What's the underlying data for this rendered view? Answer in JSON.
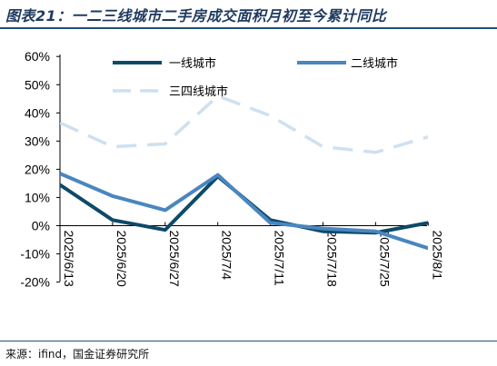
{
  "header": {
    "title": "图表21：一二三线城市二手房成交面积月初至今累计同比"
  },
  "footer": {
    "source": "来源：ifind，国金证券研究所"
  },
  "colors": {
    "tier1": "#0d4a68",
    "tier2": "#4a86c0",
    "tier3": "#cfe0f0",
    "axis": "#000000",
    "rule": "#1f4e79"
  },
  "chart_data": {
    "type": "line",
    "categories": [
      "2025/6/13",
      "2025/6/20",
      "2025/6/27",
      "2025/7/4",
      "2025/7/11",
      "2025/7/18",
      "2025/7/25",
      "2025/8/1"
    ],
    "yticks": [
      "-20%",
      "-10%",
      "0%",
      "10%",
      "20%",
      "30%",
      "40%",
      "50%",
      "60%"
    ],
    "ylim": [
      -20,
      60
    ],
    "legend_position": "top",
    "series": [
      {
        "name": "一线城市",
        "values": [
          14.5,
          2,
          -1.5,
          17.5,
          2,
          -2,
          -2.5,
          1
        ],
        "color": "#0d4a68",
        "style": "solid"
      },
      {
        "name": "二线城市",
        "values": [
          18.5,
          10.5,
          5.5,
          18,
          1,
          -1,
          -2,
          -8
        ],
        "color": "#4a86c0",
        "style": "solid"
      },
      {
        "name": "三四线城市",
        "values": [
          36.5,
          28,
          29,
          46,
          39,
          28,
          26,
          31.5
        ],
        "color": "#cfe0f0",
        "style": "dashed"
      }
    ]
  }
}
